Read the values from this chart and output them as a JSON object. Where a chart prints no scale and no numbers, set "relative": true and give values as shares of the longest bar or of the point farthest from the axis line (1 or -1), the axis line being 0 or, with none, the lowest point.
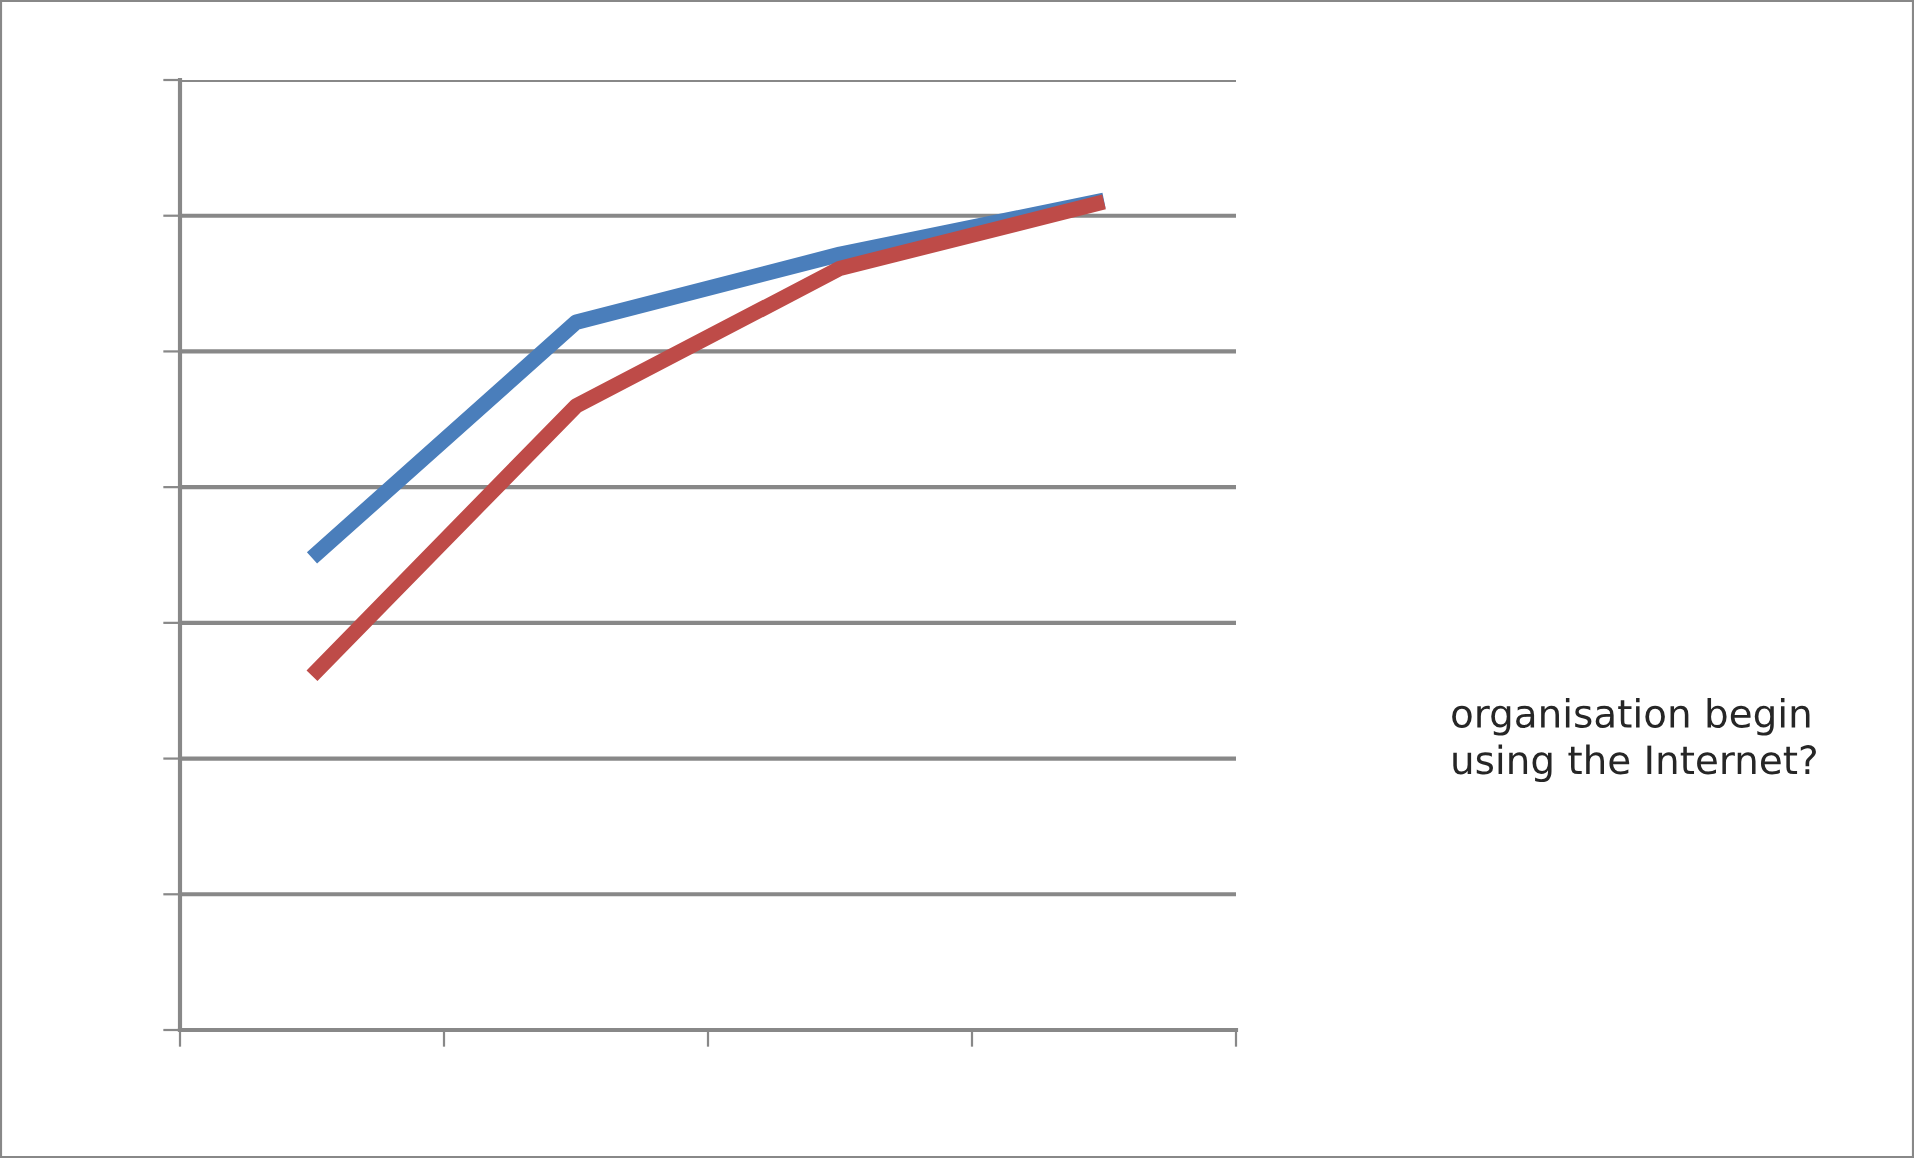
{
  "chart_data": {
    "type": "line",
    "relative": true,
    "categories": [
      null,
      null,
      null,
      null
    ],
    "series": [
      {
        "color": "#4a7ebb",
        "values": [
          0.569,
          0.853,
          0.935,
          1.0
        ]
      },
      {
        "color": "#be4b48",
        "values": [
          0.427,
          0.752,
          0.918,
          0.998
        ]
      }
    ],
    "grid": "y",
    "marker": "none",
    "line_style": "solid",
    "annotations": [
      "organisation begin\nusing the Internet?"
    ]
  }
}
